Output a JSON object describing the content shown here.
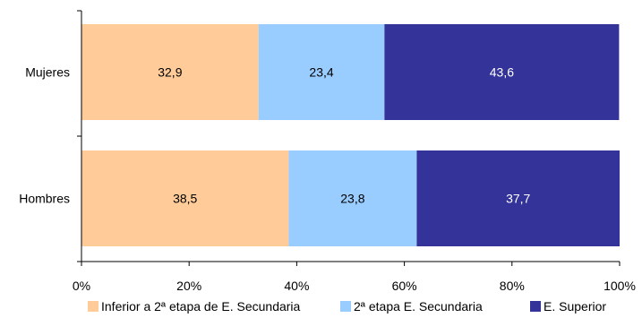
{
  "chart_data": {
    "type": "bar",
    "orientation": "horizontal",
    "stacked": true,
    "normalized": true,
    "title": "",
    "xlabel": "",
    "ylabel": "",
    "categories": [
      "Mujeres",
      "Hombres"
    ],
    "series": [
      {
        "name": "Inferior a 2ª etapa de E. Secundaria",
        "values": [
          32.9,
          38.5
        ],
        "labels": [
          "32,9",
          "38,5"
        ],
        "color": "#FFCC99",
        "label_color": "#000000"
      },
      {
        "name": "2ª etapa E. Secundaria",
        "values": [
          23.4,
          23.8
        ],
        "labels": [
          "23,4",
          "23,8"
        ],
        "color": "#99CCFF",
        "label_color": "#000000"
      },
      {
        "name": "E. Superior",
        "values": [
          43.6,
          37.7
        ],
        "labels": [
          "43,6",
          "37,7"
        ],
        "color": "#333399",
        "label_color": "#ffffff"
      }
    ],
    "xlim": [
      0,
      100
    ],
    "x_ticks": [
      0,
      20,
      40,
      60,
      80,
      100
    ],
    "x_tick_labels": [
      "0%",
      "20%",
      "40%",
      "60%",
      "80%",
      "100%"
    ],
    "grid": false,
    "legend_position": "bottom"
  }
}
